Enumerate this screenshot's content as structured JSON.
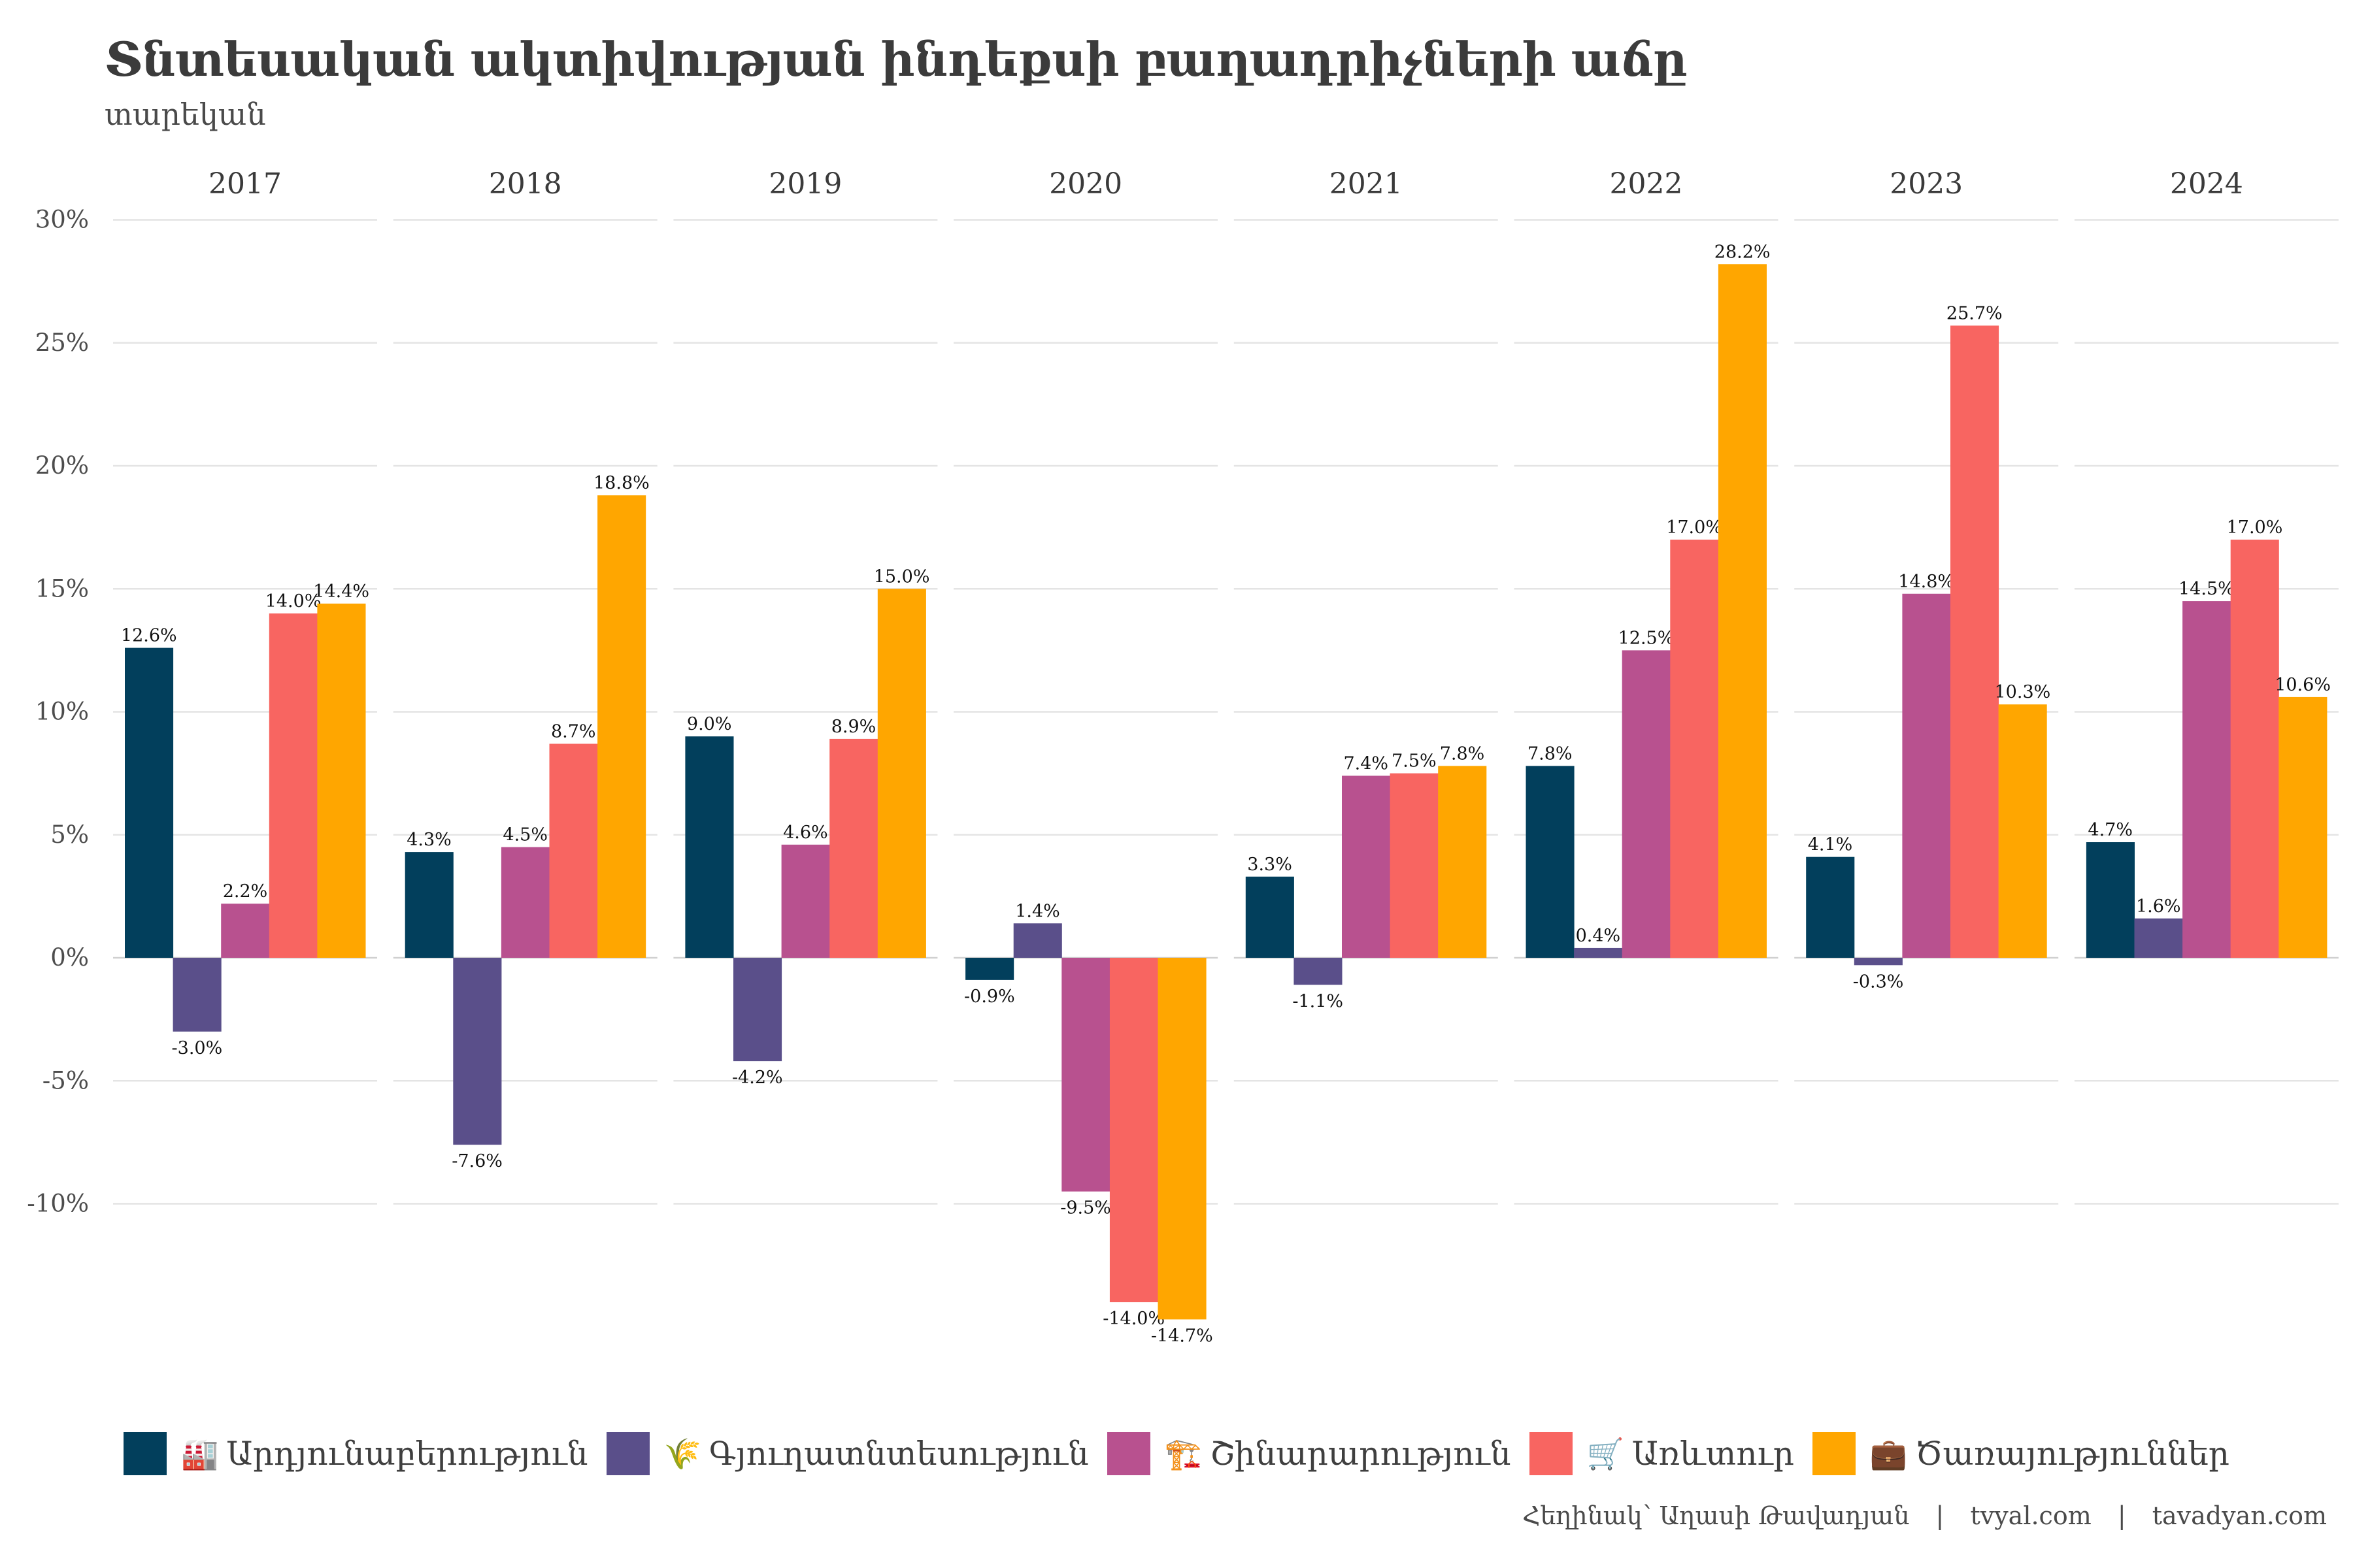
{
  "header": {
    "title": "Տնտեսական ակտիվության ինդեքսի բաղադրիչների աճը",
    "subtitle": "տարեկան"
  },
  "footer": {
    "author": "Հեղինակ՝ Աղասի Թավադյան",
    "site1": "tvyal.com",
    "site2": "tavadyan.com",
    "separator": "|"
  },
  "chart_data": {
    "type": "bar",
    "title": "Տնտեսական ակտիվության ինդեքսի բաղադրիչների աճը",
    "subtitle": "տարեկան",
    "xlabel": "",
    "ylabel": "",
    "facets": [
      "2017",
      "2018",
      "2019",
      "2020",
      "2021",
      "2022",
      "2023",
      "2024"
    ],
    "ylim": [
      -15.5,
      30
    ],
    "yticks": [
      30,
      25,
      20,
      15,
      10,
      5,
      0,
      -5,
      -10
    ],
    "ytick_labels": [
      "30%",
      "25%",
      "20%",
      "15%",
      "10%",
      "5%",
      "0%",
      "-5%",
      "-10%"
    ],
    "grid": true,
    "legend_position": "bottom",
    "series": [
      {
        "name": "Արդյունաբերություն",
        "icon": "🏭",
        "icon_name": "factory-icon",
        "color": "#023f5c",
        "values": [
          12.6,
          4.3,
          9.0,
          -0.9,
          3.3,
          7.8,
          4.1,
          4.7
        ]
      },
      {
        "name": "Գյուղատնտեսություն",
        "icon": "🌾",
        "icon_name": "wheat-icon",
        "color": "#5a4f8a",
        "values": [
          -3.0,
          -7.6,
          -4.2,
          1.4,
          -1.1,
          0.4,
          -0.3,
          1.6
        ]
      },
      {
        "name": "Շինարարություն",
        "icon": "🏗️",
        "icon_name": "crane-icon",
        "color": "#b8518f",
        "values": [
          2.2,
          4.5,
          4.6,
          -9.5,
          7.4,
          12.5,
          14.8,
          14.5
        ]
      },
      {
        "name": "Առևտուր",
        "icon": "🛒",
        "icon_name": "shopping-cart-icon",
        "color": "#f86561",
        "values": [
          14.0,
          8.7,
          8.9,
          -14.0,
          7.5,
          17.0,
          25.7,
          17.0
        ]
      },
      {
        "name": "Ծառայություններ",
        "icon": "💼",
        "icon_name": "briefcase-icon",
        "color": "#ffa600",
        "values": [
          14.4,
          18.8,
          15.0,
          -14.7,
          7.8,
          28.2,
          10.3,
          10.6
        ]
      }
    ],
    "data_labels": [
      [
        "12.6%",
        "4.3%",
        "9.0%",
        "-0.9%",
        "3.3%",
        "7.8%",
        "4.1%",
        "4.7%"
      ],
      [
        "-3.0%",
        "-7.6%",
        "-4.2%",
        "1.4%",
        "-1.1%",
        "0.4%",
        "-0.3%",
        "1.6%"
      ],
      [
        "2.2%",
        "4.5%",
        "4.6%",
        "-9.5%",
        "7.4%",
        "12.5%",
        "14.8%",
        "14.5%"
      ],
      [
        "14.0%",
        "8.7%",
        "8.9%",
        "-14.0%",
        "7.5%",
        "17.0%",
        "25.7%",
        "17.0%"
      ],
      [
        "14.4%",
        "18.8%",
        "15.0%",
        "-14.7%",
        "7.8%",
        "28.2%",
        "10.3%",
        "10.6%"
      ]
    ]
  }
}
